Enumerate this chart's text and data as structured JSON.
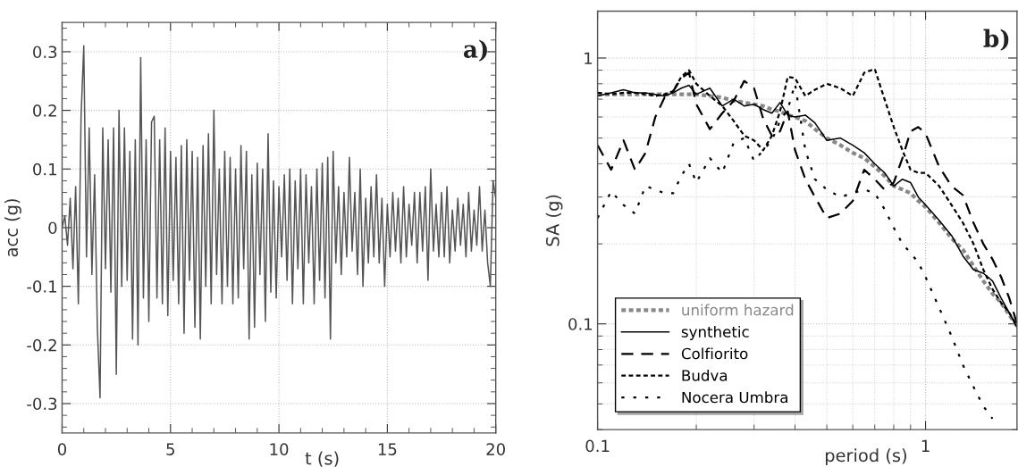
{
  "chart_data": [
    {
      "type": "line",
      "xlabel": "t (s)",
      "ylabel": "acc (g)",
      "annotations": [
        "a)"
      ],
      "xlim": [
        0,
        20
      ],
      "ylim": [
        -0.35,
        0.35
      ],
      "xticks": [
        0,
        5,
        10,
        15,
        20
      ],
      "yticks": [
        -0.3,
        -0.2,
        -0.1,
        0,
        0.1,
        0.2,
        0.3
      ],
      "grid": true,
      "x": [
        0,
        0.125,
        0.25,
        0.375,
        0.5,
        0.625,
        0.75,
        0.875,
        1,
        1.125,
        1.25,
        1.375,
        1.5,
        1.625,
        1.75,
        1.875,
        2,
        2.125,
        2.25,
        2.375,
        2.5,
        2.625,
        2.75,
        2.875,
        3,
        3.125,
        3.25,
        3.375,
        3.5,
        3.625,
        3.75,
        3.875,
        4,
        4.125,
        4.25,
        4.375,
        4.5,
        4.625,
        4.75,
        4.875,
        5,
        5.125,
        5.25,
        5.375,
        5.5,
        5.625,
        5.75,
        5.875,
        6,
        6.125,
        6.25,
        6.375,
        6.5,
        6.625,
        6.75,
        6.875,
        7,
        7.125,
        7.25,
        7.375,
        7.5,
        7.625,
        7.75,
        7.875,
        8,
        8.125,
        8.25,
        8.375,
        8.5,
        8.625,
        8.75,
        8.875,
        9,
        9.125,
        9.25,
        9.375,
        9.5,
        9.625,
        9.75,
        9.875,
        10,
        10.125,
        10.25,
        10.375,
        10.5,
        10.625,
        10.75,
        10.875,
        11,
        11.125,
        11.25,
        11.375,
        11.5,
        11.625,
        11.75,
        11.875,
        12,
        12.125,
        12.25,
        12.375,
        12.5,
        12.625,
        12.75,
        12.875,
        13,
        13.125,
        13.25,
        13.375,
        13.5,
        13.625,
        13.75,
        13.875,
        14,
        14.125,
        14.25,
        14.375,
        14.5,
        14.625,
        14.75,
        14.875,
        15,
        15.125,
        15.25,
        15.375,
        15.5,
        15.625,
        15.75,
        15.875,
        16,
        16.125,
        16.25,
        16.375,
        16.5,
        16.625,
        16.75,
        16.875,
        17,
        17.125,
        17.25,
        17.375,
        17.5,
        17.625,
        17.75,
        17.875,
        18,
        18.125,
        18.25,
        18.375,
        18.5,
        18.625,
        18.75,
        18.875,
        19,
        19.125,
        19.25,
        19.375,
        19.5,
        19.625,
        19.75,
        19.875,
        20
      ],
      "series": [
        {
          "color": "#555555",
          "values": [
            0,
            0.02,
            -0.03,
            0.05,
            -0.07,
            0.07,
            -0.13,
            0.19,
            0.31,
            -0.05,
            0.17,
            -0.08,
            0.09,
            -0.17,
            -0.29,
            0.17,
            -0.07,
            0.15,
            -0.11,
            0.17,
            -0.25,
            0.2,
            -0.1,
            0.17,
            -0.09,
            0.13,
            -0.19,
            0.15,
            -0.2,
            0.29,
            -0.12,
            0.15,
            -0.16,
            0.18,
            0.19,
            -0.12,
            0.15,
            -0.13,
            0.17,
            -0.15,
            0.13,
            -0.09,
            0.12,
            -0.13,
            0.14,
            -0.18,
            0.15,
            -0.09,
            0.13,
            -0.17,
            0.12,
            -0.19,
            0.14,
            -0.1,
            0.16,
            -0.13,
            0.2,
            -0.08,
            0.1,
            -0.13,
            0.13,
            -0.1,
            0.12,
            -0.13,
            0.1,
            -0.12,
            0.14,
            -0.07,
            0.13,
            -0.19,
            0.09,
            -0.17,
            0.11,
            -0.08,
            0.1,
            -0.16,
            0.16,
            -0.11,
            0.08,
            -0.12,
            0.07,
            -0.05,
            0.09,
            -0.09,
            0.1,
            -0.13,
            0.08,
            -0.07,
            0.1,
            -0.13,
            0.09,
            -0.06,
            0.07,
            -0.13,
            0.1,
            -0.09,
            0.11,
            -0.12,
            0.12,
            -0.19,
            0.13,
            -0.06,
            0.07,
            -0.08,
            0.06,
            -0.05,
            0.12,
            -0.04,
            0.06,
            -0.08,
            0.1,
            -0.1,
            0.05,
            -0.06,
            0.07,
            -0.05,
            0.09,
            -0.06,
            0.05,
            -0.1,
            0.04,
            -0.05,
            0.06,
            -0.04,
            0.05,
            -0.06,
            0.07,
            -0.05,
            0.04,
            -0.03,
            0.06,
            -0.06,
            0.06,
            -0.04,
            0.07,
            -0.09,
            0.1,
            -0.04,
            0.04,
            -0.05,
            0.06,
            -0.05,
            0.07,
            -0.06,
            0.03,
            -0.04,
            0.05,
            -0.03,
            0.04,
            -0.05,
            0.06,
            -0.04,
            0.03,
            -0.03,
            0.07,
            -0.04,
            0.03,
            -0.06,
            -0.1,
            0.08,
            0.05
          ]
        }
      ]
    },
    {
      "type": "line",
      "xlabel": "period (s)",
      "ylabel": "SA (g)",
      "annotations": [
        "b)"
      ],
      "log": "xy",
      "xlim": [
        0.1,
        1.9
      ],
      "ylim": [
        0.04,
        1.5
      ],
      "xticks": [
        0.1,
        1
      ],
      "yticks": [
        0.1,
        1
      ],
      "grid": true,
      "legend": "bottom left",
      "x": [
        0.1,
        0.11,
        0.12,
        0.13,
        0.14,
        0.15,
        0.16,
        0.17,
        0.18,
        0.19,
        0.2,
        0.22,
        0.24,
        0.26,
        0.28,
        0.3,
        0.32,
        0.34,
        0.36,
        0.38,
        0.4,
        0.43,
        0.46,
        0.5,
        0.55,
        0.6,
        0.65,
        0.7,
        0.75,
        0.8,
        0.85,
        0.9,
        0.95,
        1,
        1.1,
        1.2,
        1.3,
        1.4,
        1.5,
        1.6,
        1.7,
        1.8,
        1.9
      ],
      "series": [
        {
          "name": "uniform hazard",
          "color": "#888888",
          "line_style": "dotted",
          "values": [
            0.73,
            0.73,
            0.73,
            0.73,
            0.73,
            0.73,
            0.73,
            0.73,
            0.73,
            0.73,
            0.73,
            0.72,
            0.71,
            0.69,
            0.68,
            0.67,
            0.66,
            0.64,
            0.63,
            0.61,
            0.6,
            0.58,
            0.54,
            0.5,
            0.47,
            0.44,
            0.42,
            0.39,
            0.36,
            0.33,
            0.32,
            0.31,
            0.29,
            0.275,
            0.24,
            0.21,
            0.19,
            0.165,
            0.145,
            0.13,
            0.12,
            0.108,
            0.098
          ]
        },
        {
          "name": "synthetic",
          "color": "#000000",
          "line_style": "solid",
          "values": [
            0.72,
            0.74,
            0.76,
            0.74,
            0.74,
            0.73,
            0.72,
            0.74,
            0.77,
            0.79,
            0.73,
            0.77,
            0.66,
            0.7,
            0.66,
            0.67,
            0.64,
            0.62,
            0.68,
            0.61,
            0.6,
            0.61,
            0.57,
            0.49,
            0.5,
            0.47,
            0.44,
            0.4,
            0.37,
            0.33,
            0.35,
            0.34,
            0.3,
            0.28,
            0.245,
            0.215,
            0.18,
            0.16,
            0.155,
            0.145,
            0.125,
            0.11,
            0.097
          ]
        },
        {
          "name": "Colfiorito",
          "color": "#000000",
          "line_style": "dashed",
          "values": [
            0.47,
            0.38,
            0.49,
            0.38,
            0.44,
            0.6,
            0.71,
            0.75,
            0.84,
            0.88,
            0.67,
            0.54,
            0.62,
            0.69,
            0.82,
            0.77,
            0.59,
            0.51,
            0.53,
            0.63,
            0.45,
            0.35,
            0.3,
            0.25,
            0.26,
            0.29,
            0.38,
            0.35,
            0.32,
            0.34,
            0.42,
            0.53,
            0.55,
            0.52,
            0.39,
            0.33,
            0.305,
            0.24,
            0.2,
            0.175,
            0.15,
            0.125,
            0.1
          ]
        },
        {
          "name": "Budva",
          "color": "#000000",
          "line_style": "dotted",
          "values": [
            0.74,
            0.73,
            0.74,
            0.74,
            0.73,
            0.72,
            0.73,
            0.75,
            0.85,
            0.9,
            0.8,
            0.72,
            0.66,
            0.58,
            0.51,
            0.49,
            0.45,
            0.51,
            0.63,
            0.85,
            0.84,
            0.72,
            0.76,
            0.8,
            0.77,
            0.72,
            0.88,
            0.91,
            0.7,
            0.55,
            0.45,
            0.38,
            0.37,
            0.37,
            0.33,
            0.28,
            0.24,
            0.2,
            0.16,
            0.135,
            0.12,
            0.11,
            0.098
          ]
        },
        {
          "name": "Nocera Umbra",
          "color": "#000000",
          "line_style": "dotted",
          "values": [
            0.25,
            0.315,
            0.28,
            0.26,
            0.33,
            0.32,
            0.31,
            0.31,
            0.36,
            0.4,
            0.34,
            0.42,
            0.37,
            0.48,
            0.5,
            0.41,
            0.45,
            0.49,
            0.58,
            0.64,
            0.8,
            0.45,
            0.35,
            0.32,
            0.3,
            0.31,
            0.32,
            0.31,
            0.27,
            0.23,
            0.2,
            0.185,
            0.17,
            0.15,
            0.115,
            0.09,
            0.07,
            0.058,
            0.049,
            0.044,
            null,
            null,
            null
          ]
        }
      ]
    }
  ]
}
